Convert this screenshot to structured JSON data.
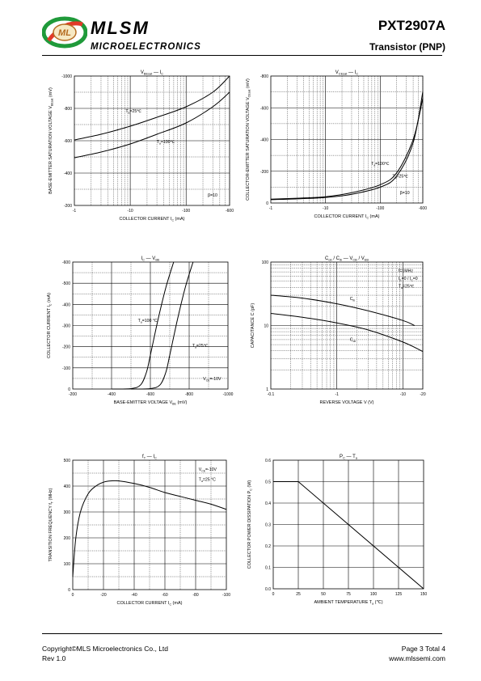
{
  "header": {
    "brand": "MLSM",
    "subtitle": "MICROELECTRONICS",
    "part_number": "PXT2907A",
    "device_type": "Transistor  (PNP)"
  },
  "footer": {
    "copyright": "Copyright©MLS Microelectronics Co., Ltd",
    "revision": "Rev 1.0",
    "page": "Page 3 Total 4",
    "website": "www.mlssemi.com"
  },
  "chart_data": [
    {
      "id": "vbe-ic",
      "type": "line",
      "title": "V_BEsat — I_C",
      "ylabel": "BASE-EMITTER SATURATION VOLTAGE  V_BEsat  (mV)",
      "xlabel": "COLLECTOR CURRENT   I_C   (mA)",
      "xscale": "log",
      "x_ticks": [
        "-1",
        "-10",
        "-100",
        "-600"
      ],
      "y_ticks": [
        "-1000",
        "-800",
        "-600",
        "-400",
        "-200"
      ],
      "ylim": [
        -200,
        -1000
      ],
      "annotations": [
        "T_a=25℃",
        "T_a=100℃",
        "β=10"
      ],
      "series": [
        {
          "name": "T_a=25℃",
          "x": [
            -1,
            -3,
            -10,
            -30,
            -100,
            -300,
            -600
          ],
          "y": [
            -605,
            -640,
            -690,
            -745,
            -810,
            -900,
            -1000
          ]
        },
        {
          "name": "T_a=100℃",
          "x": [
            -1,
            -3,
            -10,
            -30,
            -100,
            -300,
            -600
          ],
          "y": [
            -495,
            -530,
            -580,
            -640,
            -710,
            -810,
            -900
          ]
        }
      ]
    },
    {
      "id": "vce-ic",
      "type": "line",
      "title": "V_CEsat — I_C",
      "ylabel": "COLLECTOR-EMITTER SATURATION VOLTAGE  V_CEsat  (mV)",
      "xlabel": "COLLECTOR CURRENT   I_C   (mA)",
      "xscale": "log",
      "x_ticks": [
        "-1",
        "-10",
        "-100",
        "-600"
      ],
      "y_ticks": [
        "-800",
        "-600",
        "-400",
        "-200",
        "0"
      ],
      "ylim": [
        0,
        -800
      ],
      "annotations": [
        "T_a=100℃",
        "T_a=25℃",
        "β=10"
      ],
      "series": [
        {
          "name": "T_a=100℃",
          "x": [
            -1,
            -3,
            -10,
            -30,
            -100,
            -200,
            -400,
            -600
          ],
          "y": [
            -24,
            -30,
            -40,
            -65,
            -115,
            -190,
            -400,
            -660
          ]
        },
        {
          "name": "T_a=25℃",
          "x": [
            -1,
            -3,
            -10,
            -30,
            -100,
            -200,
            -400,
            -600
          ],
          "y": [
            -21,
            -26,
            -35,
            -55,
            -100,
            -170,
            -380,
            -700
          ]
        }
      ]
    },
    {
      "id": "ic-vbe",
      "type": "line",
      "title": "I_C — V_BE",
      "ylabel": "COLLECTOR CURRENT   I_C  (mA)",
      "xlabel": "BASE-EMITTER VOLTAGE   V_BE (mV)",
      "x_ticks": [
        "-200",
        "-400",
        "-600",
        "-800",
        "-1000"
      ],
      "y_ticks": [
        "-600",
        "-500",
        "-400",
        "-300",
        "-200",
        "-100",
        "0"
      ],
      "xlim": [
        -200,
        -1000
      ],
      "ylim": [
        0,
        -600
      ],
      "annotations": [
        "T_a=100 °C",
        "T_a=25℃",
        "V_CE=-10V"
      ],
      "series": [
        {
          "name": "T_a=100 °C",
          "x": [
            -400,
            -500,
            -550,
            -580,
            -600,
            -640,
            -680,
            -720
          ],
          "y": [
            0,
            -2,
            -20,
            -80,
            -160,
            -330,
            -480,
            -600
          ]
        },
        {
          "name": "T_a=25℃",
          "x": [
            -500,
            -600,
            -650,
            -680,
            -700,
            -740,
            -780,
            -820
          ],
          "y": [
            0,
            -2,
            -20,
            -80,
            -160,
            -330,
            -480,
            -600
          ]
        }
      ]
    },
    {
      "id": "cob-vcb",
      "type": "line",
      "title": "C_ob / C_ib — V_CB / V_EB",
      "ylabel": "CAPACITANCE   C   (pF)",
      "xlabel": "REVERSE  VOLTAGE   V   (V)",
      "xscale": "log",
      "yscale": "log",
      "x_ticks": [
        "-0.1",
        "-1",
        "-10",
        "-20"
      ],
      "y_ticks": [
        "100",
        "10",
        "1"
      ],
      "ylim": [
        1,
        100
      ],
      "annotations": [
        "f=1MHz",
        "I_E=0 / I_C=0",
        "T_a=25℃",
        "C_ib",
        "C_ob"
      ],
      "series": [
        {
          "name": "C_ib",
          "x": [
            -0.1,
            -0.3,
            -1,
            -3,
            -10,
            -15
          ],
          "y": [
            30,
            27,
            22,
            17,
            12,
            10
          ]
        },
        {
          "name": "C_ob",
          "x": [
            -0.1,
            -0.3,
            -1,
            -3,
            -10,
            -20
          ],
          "y": [
            15.5,
            13.5,
            11,
            8.5,
            5.5,
            3.9
          ]
        }
      ]
    },
    {
      "id": "ft-ic",
      "type": "line",
      "title": "f_T — I_C",
      "ylabel": "TRANSITION FREQUENCY   f_T   (MHz)",
      "xlabel": "COLLECTOR CURRENT   I_C   (mA)",
      "x_ticks": [
        "0",
        "-20",
        "-40",
        "-60",
        "-80",
        "-100"
      ],
      "y_ticks": [
        "0",
        "100",
        "200",
        "300",
        "400",
        "500"
      ],
      "xlim": [
        0,
        -100
      ],
      "ylim": [
        0,
        500
      ],
      "annotations": [
        "V_CE=-10V",
        "T_a=25 °C"
      ],
      "series": [
        {
          "name": "f_T",
          "x": [
            0,
            -2,
            -5,
            -10,
            -15,
            -20,
            -25,
            -30,
            -40,
            -50,
            -60,
            -70,
            -80,
            -90,
            -100
          ],
          "y": [
            50,
            200,
            300,
            370,
            400,
            415,
            420,
            420,
            410,
            395,
            375,
            360,
            345,
            330,
            310
          ]
        }
      ]
    },
    {
      "id": "pc-ta",
      "type": "line",
      "title": "P_C — T_a",
      "ylabel": "COLLECTOR POWER DISSIPATION   P_C   (W)",
      "xlabel": "AMBIENT TEMPERATURE   T_a   (℃)",
      "x_ticks": [
        "0",
        "25",
        "50",
        "75",
        "100",
        "125",
        "150"
      ],
      "y_ticks": [
        "0.0",
        "0.1",
        "0.2",
        "0.3",
        "0.4",
        "0.5",
        "0.6"
      ],
      "xlim": [
        0,
        150
      ],
      "ylim": [
        0,
        0.6
      ],
      "series": [
        {
          "name": "P_C",
          "x": [
            0,
            25,
            150
          ],
          "y": [
            0.5,
            0.5,
            0
          ]
        }
      ]
    }
  ]
}
